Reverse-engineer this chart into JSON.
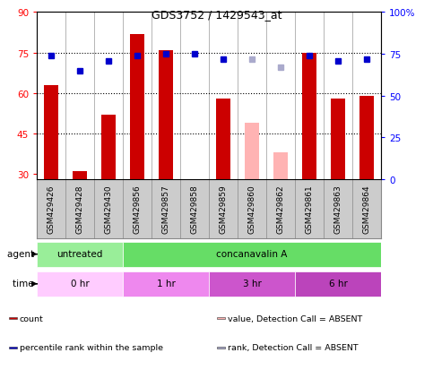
{
  "title": "GDS3752 / 1429543_at",
  "samples": [
    "GSM429426",
    "GSM429428",
    "GSM429430",
    "GSM429856",
    "GSM429857",
    "GSM429858",
    "GSM429859",
    "GSM429860",
    "GSM429862",
    "GSM429861",
    "GSM429863",
    "GSM429864"
  ],
  "count_values": [
    63,
    31,
    52,
    82,
    76,
    null,
    58,
    null,
    null,
    75,
    58,
    59
  ],
  "count_absent": [
    null,
    null,
    null,
    null,
    null,
    null,
    null,
    49,
    38,
    null,
    null,
    null
  ],
  "rank_values": [
    74,
    65,
    71,
    74,
    75,
    75,
    72,
    null,
    null,
    74,
    71,
    72
  ],
  "rank_absent": [
    null,
    null,
    null,
    null,
    null,
    null,
    null,
    72,
    67,
    null,
    null,
    null
  ],
  "ylim": [
    28,
    90
  ],
  "yticks_left": [
    30,
    45,
    60,
    75,
    90
  ],
  "yticks_right": [
    0,
    25,
    50,
    75,
    100
  ],
  "hlines": [
    45,
    60,
    75
  ],
  "bar_color": "#cc0000",
  "bar_absent_color": "#ffb3b3",
  "rank_color": "#0000cc",
  "rank_absent_color": "#aaaacc",
  "agent_untreated_color": "#99ee99",
  "agent_concanavalin_color": "#66dd66",
  "time_colors": [
    "#ffccff",
    "#ee88ee",
    "#cc55cc",
    "#bb44bb"
  ],
  "legend_items": [
    {
      "label": "count",
      "color": "#cc0000",
      "marker": "s"
    },
    {
      "label": "percentile rank within the sample",
      "color": "#0000cc",
      "marker": "s"
    },
    {
      "label": "value, Detection Call = ABSENT",
      "color": "#ffb3b3",
      "marker": "s"
    },
    {
      "label": "rank, Detection Call = ABSENT",
      "color": "#aaaacc",
      "marker": "s"
    }
  ]
}
